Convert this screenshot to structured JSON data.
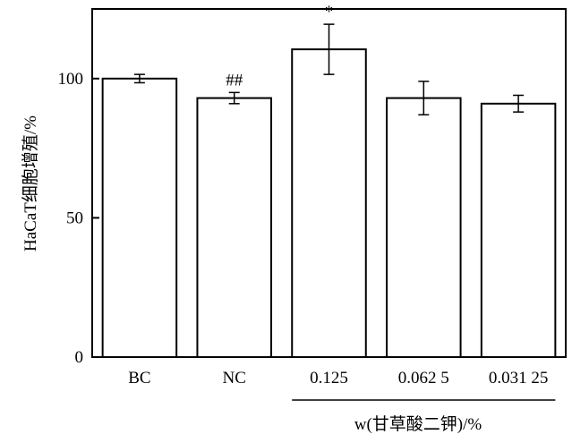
{
  "chart_data": {
    "type": "bar",
    "categories": [
      "BC",
      "NC",
      "0.125",
      "0.062 5",
      "0.031 25"
    ],
    "values": [
      100,
      93,
      110.5,
      93,
      91
    ],
    "errors": [
      1.5,
      2,
      9,
      6,
      3
    ],
    "annotations": [
      "",
      "##",
      "*",
      "",
      ""
    ],
    "ylabel": "HaCaT细胞增殖/%",
    "xlabel": "w(甘草酸二钾)/%",
    "bracket_categories": [
      2,
      4
    ],
    "yticks": [
      0,
      50,
      100
    ],
    "ylim": [
      0,
      125
    ],
    "grid": false,
    "bar_fill": "#ffffff",
    "bar_stroke": "#000000"
  }
}
